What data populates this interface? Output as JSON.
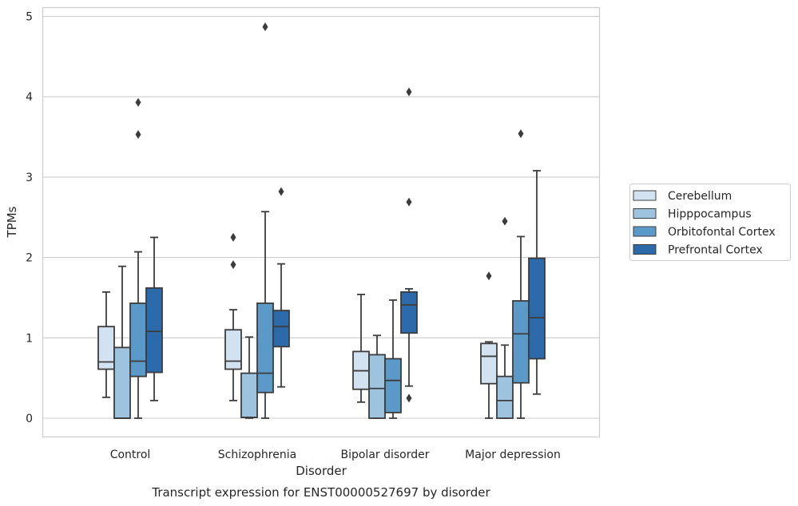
{
  "chart_data": {
    "type": "box",
    "title": "",
    "caption": "Transcript expression for ENST00000527697 by disorder",
    "xlabel": "Disorder",
    "ylabel": "TPMs",
    "ylim": [
      -0.23,
      5.12
    ],
    "yticks": [
      "0",
      "1",
      "2",
      "3",
      "4",
      "5"
    ],
    "grid": "horizontal",
    "legend_position": "right",
    "categories": [
      "Control",
      "Schizophrenia",
      "Bipolar disorder",
      "Major depression"
    ],
    "series": [
      {
        "name": "Cerebellum",
        "color": "#d3e2f1",
        "boxes": [
          {
            "whislo": 0.26,
            "q1": 0.61,
            "med": 0.7,
            "q3": 1.14,
            "whishi": 1.57,
            "fliers": []
          },
          {
            "whislo": 0.22,
            "q1": 0.61,
            "med": 0.71,
            "q3": 1.1,
            "whishi": 1.35,
            "fliers": [
              1.91,
              2.25
            ]
          },
          {
            "whislo": 0.2,
            "q1": 0.36,
            "med": 0.59,
            "q3": 0.83,
            "whishi": 1.54,
            "fliers": []
          },
          {
            "whislo": 0.0,
            "q1": 0.43,
            "med": 0.77,
            "q3": 0.93,
            "whishi": 0.95,
            "fliers": [
              1.77
            ]
          }
        ]
      },
      {
        "name": "Hipppocampus",
        "color": "#9dc3de",
        "boxes": [
          {
            "whislo": 0.0,
            "q1": 0.0,
            "med": 0.0,
            "q3": 0.88,
            "whishi": 1.89,
            "fliers": []
          },
          {
            "whislo": 0.0,
            "q1": 0.01,
            "med": 0.01,
            "q3": 0.56,
            "whishi": 1.01,
            "fliers": []
          },
          {
            "whislo": 0.0,
            "q1": 0.0,
            "med": 0.37,
            "q3": 0.79,
            "whishi": 1.03,
            "fliers": []
          },
          {
            "whislo": 0.0,
            "q1": 0.0,
            "med": 0.22,
            "q3": 0.52,
            "whishi": 0.91,
            "fliers": [
              2.45
            ]
          }
        ]
      },
      {
        "name": "Orbitofontal Cortex",
        "color": "#5b99c9",
        "boxes": [
          {
            "whislo": 0.0,
            "q1": 0.52,
            "med": 0.71,
            "q3": 1.43,
            "whishi": 2.07,
            "fliers": [
              3.53,
              3.93
            ]
          },
          {
            "whislo": 0.0,
            "q1": 0.32,
            "med": 0.56,
            "q3": 1.43,
            "whishi": 2.57,
            "fliers": [
              4.87
            ]
          },
          {
            "whislo": 0.0,
            "q1": 0.07,
            "med": 0.47,
            "q3": 0.74,
            "whishi": 1.47,
            "fliers": []
          },
          {
            "whislo": 0.0,
            "q1": 0.44,
            "med": 1.05,
            "q3": 1.46,
            "whishi": 2.26,
            "fliers": [
              3.54
            ]
          }
        ]
      },
      {
        "name": "Prefrontal Cortex",
        "color": "#2c6aaa",
        "boxes": [
          {
            "whislo": 0.22,
            "q1": 0.57,
            "med": 1.08,
            "q3": 1.62,
            "whishi": 2.25,
            "fliers": []
          },
          {
            "whislo": 0.39,
            "q1": 0.89,
            "med": 1.14,
            "q3": 1.34,
            "whishi": 1.92,
            "fliers": [
              2.82
            ]
          },
          {
            "whislo": 0.4,
            "q1": 1.06,
            "med": 1.41,
            "q3": 1.57,
            "whishi": 1.61,
            "fliers": [
              0.25,
              2.69,
              4.06
            ]
          },
          {
            "whislo": 0.3,
            "q1": 0.74,
            "med": 1.25,
            "q3": 1.99,
            "whishi": 3.08,
            "fliers": []
          }
        ]
      }
    ]
  }
}
